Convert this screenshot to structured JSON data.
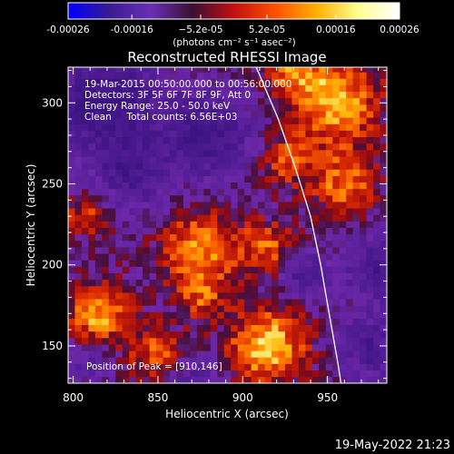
{
  "chart_data": {
    "type": "heatmap",
    "title": "Reconstructed RHESSI Image",
    "xlabel": "Heliocentric X (arcsec)",
    "ylabel": "Heliocentric Y (arcsec)",
    "xlim": [
      797,
      985
    ],
    "ylim": [
      127,
      322
    ],
    "x_ticks": [
      800,
      850,
      900,
      950
    ],
    "y_ticks": [
      150,
      200,
      250,
      300
    ],
    "colorbar": {
      "range": [
        -0.00026,
        0.00026
      ],
      "tick_values": [
        -0.00026,
        -0.00016,
        -5.2e-05,
        5.2e-05,
        0.00016,
        0.00026
      ],
      "tick_labels": [
        "-0.00026",
        "-0.00016",
        "−5.2e-05",
        "5.2e-05",
        "0.00016",
        "0.00026"
      ],
      "unit_label": "(photons cm⁻² s⁻¹ asec⁻²)",
      "colors": [
        "#0000ff",
        "#3a1a8f",
        "#6a2fb5",
        "#3a1030",
        "#c01010",
        "#ff5000",
        "#ffb000",
        "#ffff90",
        "#ffffff"
      ]
    },
    "annotations": [
      "19-Mar-2015 00:50:00.000 to 00:56:00.000",
      "Detectors: 3F 5F 6F 7F 8F 9F, Att 0",
      "Energy Range: 25.0 - 50.0 keV",
      "Clean     Total counts: 6.56E+03"
    ],
    "peak_label": "Position of Peak = [910,146]",
    "peak": [
      910,
      146
    ],
    "limb_curve": [
      [
        908,
        322
      ],
      [
        921,
        290
      ],
      [
        931,
        260
      ],
      [
        940,
        230
      ],
      [
        946,
        200
      ],
      [
        951,
        170
      ],
      [
        956,
        140
      ],
      [
        958,
        127
      ]
    ],
    "hot_spots": [
      {
        "x": 915,
        "y": 150,
        "sigma": 16,
        "amp": 1.0
      },
      {
        "x": 815,
        "y": 170,
        "sigma": 13,
        "amp": 0.85
      },
      {
        "x": 850,
        "y": 145,
        "sigma": 12,
        "amp": 0.6
      },
      {
        "x": 875,
        "y": 210,
        "sigma": 16,
        "amp": 0.8
      },
      {
        "x": 915,
        "y": 210,
        "sigma": 12,
        "amp": 0.6
      },
      {
        "x": 955,
        "y": 300,
        "sigma": 18,
        "amp": 0.9
      },
      {
        "x": 960,
        "y": 250,
        "sigma": 14,
        "amp": 0.7
      },
      {
        "x": 925,
        "y": 265,
        "sigma": 11,
        "amp": 0.55
      },
      {
        "x": 930,
        "y": 320,
        "sigma": 12,
        "amp": 0.6
      },
      {
        "x": 808,
        "y": 230,
        "sigma": 9,
        "amp": 0.5
      },
      {
        "x": 875,
        "y": 180,
        "sigma": 10,
        "amp": 0.5
      }
    ],
    "cold_spots": [
      {
        "x": 820,
        "y": 300,
        "sigma": 22,
        "amp": 0.9
      },
      {
        "x": 880,
        "y": 280,
        "sigma": 18,
        "amp": 0.8
      },
      {
        "x": 835,
        "y": 255,
        "sigma": 14,
        "amp": 0.6
      },
      {
        "x": 935,
        "y": 195,
        "sigma": 10,
        "amp": 0.6
      },
      {
        "x": 980,
        "y": 200,
        "sigma": 14,
        "amp": 0.7
      },
      {
        "x": 975,
        "y": 150,
        "sigma": 14,
        "amp": 0.6
      },
      {
        "x": 870,
        "y": 130,
        "sigma": 10,
        "amp": 0.5
      },
      {
        "x": 810,
        "y": 140,
        "sigma": 9,
        "amp": 0.4
      }
    ]
  },
  "footer": {
    "timestamp": "19-May-2022 21:23"
  }
}
